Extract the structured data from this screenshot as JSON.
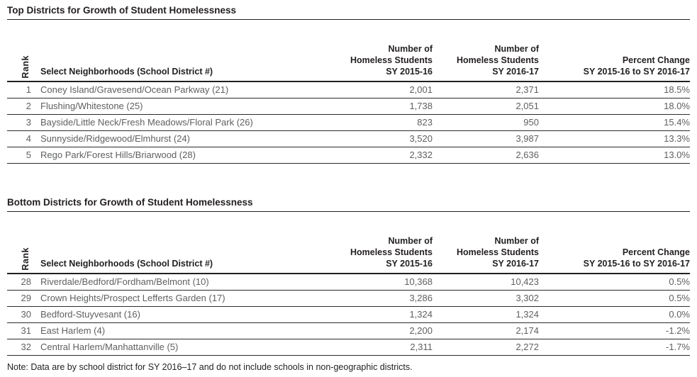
{
  "tables": [
    {
      "title": "Top Districts for Growth of Student Homelessness",
      "headers": {
        "rank": "Rank",
        "name": "Select Neighborhoods (School District #)",
        "sy1516": "Number of\nHomeless Students\nSY 2015-16",
        "sy1617": "Number of\nHomeless Students\nSY 2016-17",
        "pct": "Percent Change\nSY 2015-16 to SY 2016-17"
      },
      "rows": [
        {
          "rank": "1",
          "name": "Coney Island/Gravesend/Ocean Parkway (21)",
          "sy1516": "2,001",
          "sy1617": "2,371",
          "pct": "18.5%"
        },
        {
          "rank": "2",
          "name": "Flushing/Whitestone (25)",
          "sy1516": "1,738",
          "sy1617": "2,051",
          "pct": "18.0%"
        },
        {
          "rank": "3",
          "name": "Bayside/Little Neck/Fresh Meadows/Floral Park (26)",
          "sy1516": "823",
          "sy1617": "950",
          "pct": "15.4%"
        },
        {
          "rank": "4",
          "name": "Sunnyside/Ridgewood/Elmhurst (24)",
          "sy1516": "3,520",
          "sy1617": "3,987",
          "pct": "13.3%"
        },
        {
          "rank": "5",
          "name": "Rego Park/Forest Hills/Briarwood (28)",
          "sy1516": "2,332",
          "sy1617": "2,636",
          "pct": "13.0%"
        }
      ]
    },
    {
      "title": "Bottom Districts for Growth of Student Homelessness",
      "headers": {
        "rank": "Rank",
        "name": "Select Neighborhoods (School District #)",
        "sy1516": "Number of\nHomeless Students\nSY 2015-16",
        "sy1617": "Number of\nHomeless Students\nSY 2016-17",
        "pct": "Percent Change\nSY 2015-16 to SY 2016-17"
      },
      "rows": [
        {
          "rank": "28",
          "name": "Riverdale/Bedford/Fordham/Belmont (10)",
          "sy1516": "10,368",
          "sy1617": "10,423",
          "pct": "0.5%"
        },
        {
          "rank": "29",
          "name": "Crown Heights/Prospect Lefferts Garden (17)",
          "sy1516": "3,286",
          "sy1617": "3,302",
          "pct": "0.5%"
        },
        {
          "rank": "30",
          "name": "Bedford-Stuyvesant (16)",
          "sy1516": "1,324",
          "sy1617": "1,324",
          "pct": "0.0%"
        },
        {
          "rank": "31",
          "name": "East Harlem (4)",
          "sy1516": "2,200",
          "sy1617": "2,174",
          "pct": "-1.2%"
        },
        {
          "rank": "32",
          "name": "Central Harlem/Manhattanville (5)",
          "sy1516": "2,311",
          "sy1617": "2,272",
          "pct": "-1.7%"
        }
      ]
    }
  ],
  "note": "Note: Data are by school district for SY 2016–17 and do not include schools in non-geographic districts.",
  "colors": {
    "heading_text": "#231f20",
    "data_text": "#5f6062",
    "rule": "#231f20"
  },
  "chart_data": [
    {
      "type": "table",
      "title": "Top Districts for Growth of Student Homelessness",
      "columns": [
        "Rank",
        "Select Neighborhoods (School District #)",
        "Number of Homeless Students SY 2015-16",
        "Number of Homeless Students SY 2016-17",
        "Percent Change SY 2015-16 to SY 2016-17"
      ],
      "rows": [
        [
          1,
          "Coney Island/Gravesend/Ocean Parkway (21)",
          2001,
          2371,
          18.5
        ],
        [
          2,
          "Flushing/Whitestone (25)",
          1738,
          2051,
          18.0
        ],
        [
          3,
          "Bayside/Little Neck/Fresh Meadows/Floral Park (26)",
          823,
          950,
          15.4
        ],
        [
          4,
          "Sunnyside/Ridgewood/Elmhurst (24)",
          3520,
          3987,
          13.3
        ],
        [
          5,
          "Rego Park/Forest Hills/Briarwood (28)",
          2332,
          2636,
          13.0
        ]
      ]
    },
    {
      "type": "table",
      "title": "Bottom Districts for Growth of Student Homelessness",
      "columns": [
        "Rank",
        "Select Neighborhoods (School District #)",
        "Number of Homeless Students SY 2015-16",
        "Number of Homeless Students SY 2016-17",
        "Percent Change SY 2015-16 to SY 2016-17"
      ],
      "rows": [
        [
          28,
          "Riverdale/Bedford/Fordham/Belmont (10)",
          10368,
          10423,
          0.5
        ],
        [
          29,
          "Crown Heights/Prospect Lefferts Garden (17)",
          3286,
          3302,
          0.5
        ],
        [
          30,
          "Bedford-Stuyvesant (16)",
          1324,
          1324,
          0.0
        ],
        [
          31,
          "East Harlem (4)",
          2200,
          2174,
          -1.2
        ],
        [
          32,
          "Central Harlem/Manhattanville (5)",
          2311,
          2272,
          -1.7
        ]
      ]
    }
  ]
}
